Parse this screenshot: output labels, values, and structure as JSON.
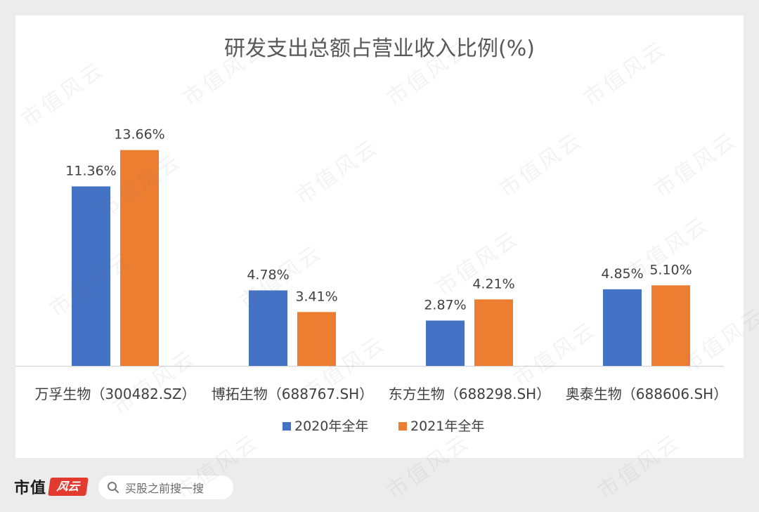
{
  "chart_data": {
    "type": "bar",
    "title": "研发支出总额占营业收入比例(%)",
    "categories": [
      "万孚生物（300482.SZ）",
      "博拓生物（688767.SH）",
      "东方生物（688298.SH）",
      "奥泰生物（688606.SH）"
    ],
    "series": [
      {
        "name": "2020年全年",
        "values": [
          11.36,
          4.78,
          2.87,
          4.85
        ],
        "labels": [
          "11.36%",
          "4.78%",
          "2.87%",
          "4.85%"
        ],
        "color": "#4472c4"
      },
      {
        "name": "2021年全年",
        "values": [
          13.66,
          3.41,
          4.21,
          5.1
        ],
        "labels": [
          "13.66%",
          "3.41%",
          "4.21%",
          "5.10%"
        ],
        "color": "#ed7d31"
      }
    ],
    "ylim": [
      0,
      15.0
    ],
    "grid": false,
    "legend_position": "bottom",
    "axis_color": "#d9d9d9"
  },
  "footer": {
    "brand_name": "市值",
    "brand_seal": "风云",
    "search_placeholder": "买股之前搜一搜",
    "search_icon": "search-icon"
  },
  "watermark": "市值风云"
}
